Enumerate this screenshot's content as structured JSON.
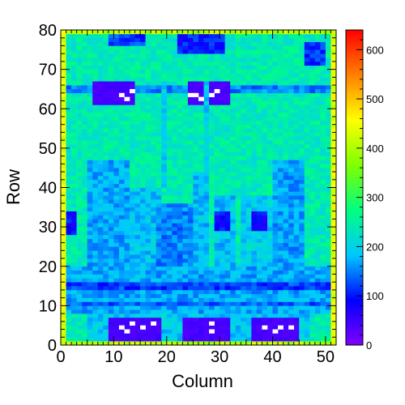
{
  "chart_data": {
    "type": "heatmap",
    "title": "",
    "xlabel": "Column",
    "ylabel": "Row",
    "xlim": [
      0,
      52
    ],
    "ylim": [
      0,
      80
    ],
    "x_ticks": [
      0,
      10,
      20,
      30,
      40,
      50
    ],
    "y_ticks": [
      0,
      10,
      20,
      30,
      40,
      50,
      60,
      70,
      80
    ],
    "colorbar": {
      "range": [
        0,
        640
      ],
      "ticks": [
        0,
        100,
        200,
        300,
        400,
        500,
        600
      ],
      "palette": [
        "#8000ff",
        "#0000ff",
        "#00c8ff",
        "#00ff80",
        "#80ff00",
        "#ffff00",
        "#ff8000",
        "#ff0000"
      ]
    },
    "grid_size": {
      "columns": 52,
      "rows": 80
    },
    "background_level": 240,
    "regions": [
      {
        "x": [
          0,
          1
        ],
        "y": [
          0,
          80
        ],
        "value": 440,
        "label": "left border"
      },
      {
        "x": [
          51,
          52
        ],
        "y": [
          0,
          80
        ],
        "value": 440,
        "label": "right border"
      },
      {
        "x": [
          1,
          51
        ],
        "y": [
          79,
          80
        ],
        "value": 400,
        "label": "top border"
      },
      {
        "x": [
          1,
          51
        ],
        "y": [
          0,
          1
        ],
        "value": 400,
        "label": "bottom border"
      },
      {
        "x": [
          5,
          13
        ],
        "y": [
          20,
          47
        ],
        "value": 170
      },
      {
        "x": [
          13,
          19
        ],
        "y": [
          20,
          40
        ],
        "value": 185
      },
      {
        "x": [
          18,
          25
        ],
        "y": [
          20,
          36
        ],
        "value": 150
      },
      {
        "x": [
          25,
          28
        ],
        "y": [
          20,
          44
        ],
        "value": 180
      },
      {
        "x": [
          29,
          33
        ],
        "y": [
          20,
          38
        ],
        "value": 185
      },
      {
        "x": [
          34,
          40
        ],
        "y": [
          20,
          38
        ],
        "value": 195
      },
      {
        "x": [
          40,
          46
        ],
        "y": [
          20,
          47
        ],
        "value": 165
      },
      {
        "x": [
          1,
          3
        ],
        "y": [
          28,
          34
        ],
        "value": 90
      },
      {
        "x": [
          29,
          32
        ],
        "y": [
          29,
          34
        ],
        "value": 90
      },
      {
        "x": [
          36,
          39
        ],
        "y": [
          29,
          34
        ],
        "value": 90
      },
      {
        "x": [
          1,
          51
        ],
        "y": [
          8,
          20
        ],
        "value": 170
      },
      {
        "x": [
          1,
          51
        ],
        "y": [
          14,
          16
        ],
        "value": 120
      },
      {
        "x": [
          1,
          51
        ],
        "y": [
          10,
          11
        ],
        "value": 130
      },
      {
        "x": [
          5,
          47
        ],
        "y": [
          1,
          8
        ],
        "value": 190
      },
      {
        "x": [
          9,
          19
        ],
        "y": [
          1,
          7
        ],
        "value": 40,
        "label": "bottom chip left"
      },
      {
        "x": [
          23,
          32
        ],
        "y": [
          1,
          7
        ],
        "value": 40,
        "label": "bottom chip middle"
      },
      {
        "x": [
          36,
          45
        ],
        "y": [
          1,
          7
        ],
        "value": 40,
        "label": "bottom chip right"
      },
      {
        "x": [
          1,
          51
        ],
        "y": [
          64,
          66
        ],
        "value": 150
      },
      {
        "x": [
          6,
          14
        ],
        "y": [
          61,
          67
        ],
        "value": 40,
        "label": "top chip left"
      },
      {
        "x": [
          24,
          32
        ],
        "y": [
          61,
          67
        ],
        "value": 40,
        "label": "top chip right"
      },
      {
        "x": [
          9,
          16
        ],
        "y": [
          76,
          79
        ],
        "value": 120
      },
      {
        "x": [
          22,
          31
        ],
        "y": [
          74,
          79
        ],
        "value": 100
      },
      {
        "x": [
          46,
          50
        ],
        "y": [
          71,
          77
        ],
        "value": 110
      },
      {
        "x": [
          19,
          20
        ],
        "y": [
          40,
          67
        ],
        "value": 190
      },
      {
        "x": [
          27,
          28
        ],
        "y": [
          40,
          67
        ],
        "value": 190
      }
    ],
    "hot_pixels": [
      {
        "x": 11,
        "y": 63
      },
      {
        "x": 12,
        "y": 62
      },
      {
        "x": 13,
        "y": 64
      },
      {
        "x": 24,
        "y": 63
      },
      {
        "x": 25,
        "y": 63
      },
      {
        "x": 26,
        "y": 62
      },
      {
        "x": 28,
        "y": 63
      },
      {
        "x": 29,
        "y": 64
      },
      {
        "x": 12,
        "y": 3
      },
      {
        "x": 11,
        "y": 4
      },
      {
        "x": 13,
        "y": 5
      },
      {
        "x": 15,
        "y": 4
      },
      {
        "x": 17,
        "y": 5
      },
      {
        "x": 28,
        "y": 3
      },
      {
        "x": 28,
        "y": 5
      },
      {
        "x": 38,
        "y": 4
      },
      {
        "x": 40,
        "y": 3
      },
      {
        "x": 41,
        "y": 4
      },
      {
        "x": 43,
        "y": 4
      }
    ]
  }
}
